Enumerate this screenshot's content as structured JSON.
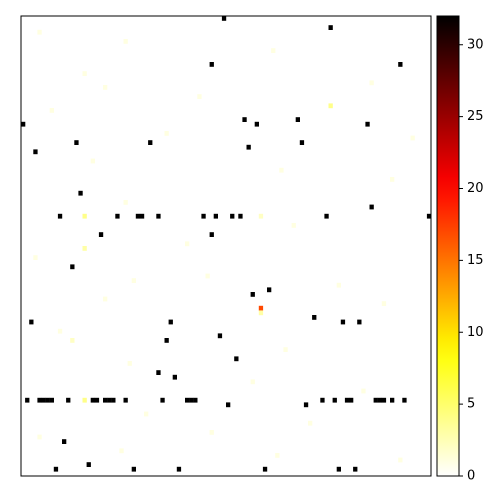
{
  "chart_data": {
    "type": "heatmap",
    "colormap": "hot_r",
    "xlim": [
      0,
      100
    ],
    "ylim": [
      0,
      100
    ],
    "clim": [
      0,
      32
    ],
    "cticks": [
      0,
      5,
      10,
      15,
      20,
      25,
      30
    ],
    "cells": [
      [
        0,
        49,
        32
      ],
      [
        2,
        75,
        32
      ],
      [
        10,
        46,
        32
      ],
      [
        10,
        92,
        32
      ],
      [
        23,
        0,
        32
      ],
      [
        22,
        54,
        32
      ],
      [
        23,
        57,
        32
      ],
      [
        22,
        67,
        32
      ],
      [
        23,
        84,
        32
      ],
      [
        29,
        3,
        32
      ],
      [
        27,
        13,
        32
      ],
      [
        27,
        31,
        32
      ],
      [
        28,
        55,
        32
      ],
      [
        27,
        68,
        32
      ],
      [
        38,
        14,
        32
      ],
      [
        41,
        85,
        32
      ],
      [
        43,
        9,
        32
      ],
      [
        43,
        23,
        32
      ],
      [
        43,
        28,
        32
      ],
      [
        43,
        29,
        32
      ],
      [
        43,
        33,
        32
      ],
      [
        43,
        44,
        32
      ],
      [
        43,
        47,
        32
      ],
      [
        43,
        51,
        32
      ],
      [
        43,
        53,
        32
      ],
      [
        43,
        74,
        32
      ],
      [
        43,
        99,
        32
      ],
      [
        47,
        19,
        32
      ],
      [
        47,
        46,
        32
      ],
      [
        54,
        12,
        32
      ],
      [
        59,
        60,
        32
      ],
      [
        60,
        56,
        32
      ],
      [
        63,
        58,
        17
      ],
      [
        65,
        71,
        32
      ],
      [
        66,
        2,
        32
      ],
      [
        66,
        36,
        32
      ],
      [
        66,
        78,
        32
      ],
      [
        66,
        82,
        32
      ],
      [
        69,
        48,
        32
      ],
      [
        70,
        35,
        32
      ],
      [
        74,
        52,
        32
      ],
      [
        77,
        33,
        32
      ],
      [
        78,
        37,
        32
      ],
      [
        83,
        1,
        32
      ],
      [
        83,
        4,
        32
      ],
      [
        83,
        5,
        32
      ],
      [
        83,
        6,
        32
      ],
      [
        83,
        7,
        32
      ],
      [
        83,
        11,
        32
      ],
      [
        83,
        17,
        32
      ],
      [
        83,
        18,
        32
      ],
      [
        83,
        20,
        32
      ],
      [
        83,
        21,
        32
      ],
      [
        83,
        22,
        32
      ],
      [
        83,
        25,
        32
      ],
      [
        83,
        34,
        32
      ],
      [
        83,
        40,
        32
      ],
      [
        83,
        41,
        32
      ],
      [
        83,
        42,
        32
      ],
      [
        84,
        50,
        32
      ],
      [
        84,
        69,
        32
      ],
      [
        83,
        73,
        32
      ],
      [
        83,
        76,
        32
      ],
      [
        83,
        79,
        32
      ],
      [
        83,
        80,
        32
      ],
      [
        83,
        86,
        32
      ],
      [
        83,
        87,
        32
      ],
      [
        83,
        88,
        32
      ],
      [
        83,
        90,
        32
      ],
      [
        83,
        93,
        32
      ],
      [
        92,
        10,
        32
      ],
      [
        97,
        16,
        32
      ],
      [
        98,
        8,
        32
      ],
      [
        98,
        27,
        32
      ],
      [
        98,
        38,
        32
      ],
      [
        98,
        59,
        32
      ],
      [
        98,
        77,
        32
      ],
      [
        98,
        81,
        32
      ],
      [
        43,
        15,
        4
      ],
      [
        83,
        15,
        4
      ],
      [
        19,
        75,
        4
      ],
      [
        50,
        15,
        3
      ],
      [
        64,
        58,
        3
      ],
      [
        43,
        58,
        2
      ],
      [
        70,
        12,
        2
      ],
      [
        3,
        4,
        1
      ],
      [
        5,
        25,
        1
      ],
      [
        7,
        61,
        1
      ],
      [
        12,
        15,
        1
      ],
      [
        15,
        20,
        1
      ],
      [
        17,
        43,
        1
      ],
      [
        20,
        7,
        1
      ],
      [
        25,
        35,
        1
      ],
      [
        31,
        17,
        1
      ],
      [
        33,
        63,
        1
      ],
      [
        35,
        90,
        1
      ],
      [
        40,
        25,
        1
      ],
      [
        45,
        66,
        1
      ],
      [
        49,
        40,
        1
      ],
      [
        52,
        3,
        1
      ],
      [
        56,
        45,
        1
      ],
      [
        58,
        77,
        1
      ],
      [
        61,
        20,
        1
      ],
      [
        62,
        88,
        1
      ],
      [
        68,
        9,
        1
      ],
      [
        72,
        64,
        1
      ],
      [
        75,
        26,
        1
      ],
      [
        79,
        56,
        1
      ],
      [
        81,
        83,
        1
      ],
      [
        86,
        30,
        1
      ],
      [
        88,
        70,
        1
      ],
      [
        90,
        46,
        1
      ],
      [
        94,
        24,
        1
      ],
      [
        95,
        62,
        1
      ],
      [
        96,
        92,
        1
      ],
      [
        91,
        4,
        1
      ],
      [
        26,
        95,
        1
      ],
      [
        14,
        85,
        1
      ],
      [
        57,
        27,
        1
      ]
    ]
  }
}
